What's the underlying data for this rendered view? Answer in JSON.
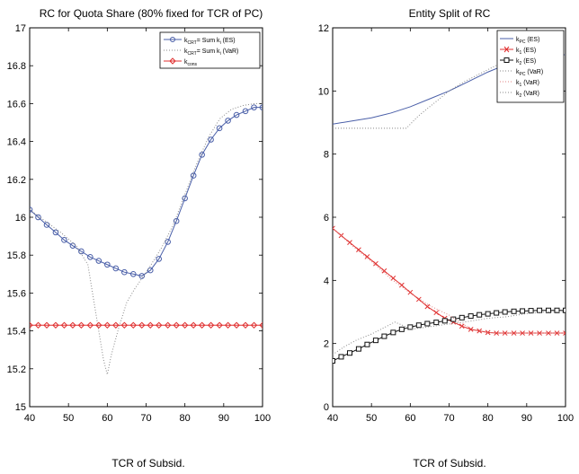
{
  "chart_data": [
    {
      "type": "line",
      "title": "RC for Quota Share (80% fixed for TCR of PC)",
      "xlabel": "TCR of Subsid.",
      "ylabel": "",
      "xlim": [
        40,
        100
      ],
      "ylim": [
        15,
        17
      ],
      "xticks": [
        40,
        50,
        60,
        70,
        80,
        90,
        100
      ],
      "yticks": [
        15,
        15.2,
        15.4,
        15.6,
        15.8,
        16,
        16.2,
        16.4,
        16.6,
        16.8,
        17
      ],
      "grid": false,
      "legend_position": "top-right",
      "series": [
        {
          "name": "k_CRT = Sum k_i (ES)",
          "color": "#4a5fa8",
          "style": "solid-circle",
          "x": [
            40,
            42.2,
            44.4,
            46.7,
            48.9,
            51.1,
            53.3,
            55.6,
            57.8,
            60,
            62.2,
            64.4,
            66.7,
            68.9,
            71.1,
            73.3,
            75.6,
            77.8,
            80,
            82.2,
            84.4,
            86.7,
            88.9,
            91.1,
            93.3,
            95.6,
            97.8,
            100
          ],
          "values": [
            16.04,
            16.0,
            15.96,
            15.92,
            15.88,
            15.85,
            15.82,
            15.79,
            15.77,
            15.75,
            15.73,
            15.71,
            15.7,
            15.69,
            15.72,
            15.78,
            15.87,
            15.98,
            16.1,
            16.22,
            16.33,
            16.41,
            16.47,
            16.51,
            16.54,
            16.56,
            16.58,
            16.58
          ]
        },
        {
          "name": "k_CRT = Sum k_i (VaR)",
          "color": "#888888",
          "style": "dotted",
          "x": [
            40,
            44,
            48,
            52,
            55,
            57,
            59,
            60,
            61,
            63,
            65,
            67,
            69,
            71,
            74,
            77,
            80,
            83,
            86,
            89,
            92,
            95,
            98,
            100
          ],
          "values": [
            16.04,
            15.98,
            15.92,
            15.85,
            15.75,
            15.5,
            15.25,
            15.17,
            15.27,
            15.42,
            15.55,
            15.62,
            15.68,
            15.74,
            15.84,
            15.96,
            16.12,
            16.28,
            16.42,
            16.52,
            16.57,
            16.59,
            16.6,
            16.6
          ]
        },
        {
          "name": "k_cons",
          "color": "#e03030",
          "style": "solid-diamond",
          "x": [
            40,
            42.2,
            44.4,
            46.7,
            48.9,
            51.1,
            53.3,
            55.6,
            57.8,
            60,
            62.2,
            64.4,
            66.7,
            68.9,
            71.1,
            73.3,
            75.6,
            77.8,
            80,
            82.2,
            84.4,
            86.7,
            88.9,
            91.1,
            93.3,
            95.6,
            97.8,
            100
          ],
          "values": [
            15.43,
            15.43,
            15.43,
            15.43,
            15.43,
            15.43,
            15.43,
            15.43,
            15.43,
            15.43,
            15.43,
            15.43,
            15.43,
            15.43,
            15.43,
            15.43,
            15.43,
            15.43,
            15.43,
            15.43,
            15.43,
            15.43,
            15.43,
            15.43,
            15.43,
            15.43,
            15.43,
            15.43
          ]
        }
      ]
    },
    {
      "type": "line",
      "title": "Entity Split of RC",
      "xlabel": "TCR of Subsid.",
      "ylabel": "",
      "xlim": [
        40,
        100
      ],
      "ylim": [
        0,
        12
      ],
      "xticks": [
        40,
        50,
        60,
        70,
        80,
        90,
        100
      ],
      "yticks": [
        0,
        2,
        4,
        6,
        8,
        10,
        12
      ],
      "grid": false,
      "legend_position": "top-right",
      "series": [
        {
          "name": "k_PC (ES)",
          "color": "#4a5fa8",
          "style": "solid",
          "x": [
            40,
            45,
            50,
            55,
            60,
            65,
            70,
            75,
            80,
            85,
            90,
            95,
            100
          ],
          "values": [
            8.95,
            9.05,
            9.15,
            9.3,
            9.5,
            9.75,
            10.0,
            10.3,
            10.6,
            10.85,
            11.0,
            11.1,
            11.15
          ]
        },
        {
          "name": "k_1 (ES)",
          "color": "#e03030",
          "style": "solid-x",
          "x": [
            40,
            42.2,
            44.4,
            46.7,
            48.9,
            51.1,
            53.3,
            55.6,
            57.8,
            60,
            62.2,
            64.4,
            66.7,
            68.9,
            71.1,
            73.3,
            75.6,
            77.8,
            80,
            82.2,
            84.4,
            86.7,
            88.9,
            91.1,
            93.3,
            95.6,
            97.8,
            100
          ],
          "values": [
            5.65,
            5.42,
            5.2,
            4.97,
            4.75,
            4.53,
            4.3,
            4.07,
            3.85,
            3.62,
            3.4,
            3.17,
            2.98,
            2.8,
            2.68,
            2.55,
            2.45,
            2.4,
            2.35,
            2.33,
            2.33,
            2.33,
            2.33,
            2.33,
            2.33,
            2.33,
            2.33,
            2.33
          ]
        },
        {
          "name": "k_2 (ES)",
          "color": "#111111",
          "style": "solid-square",
          "x": [
            40,
            42.2,
            44.4,
            46.7,
            48.9,
            51.1,
            53.3,
            55.6,
            57.8,
            60,
            62.2,
            64.4,
            66.7,
            68.9,
            71.1,
            73.3,
            75.6,
            77.8,
            80,
            82.2,
            84.4,
            86.7,
            88.9,
            91.1,
            93.3,
            95.6,
            97.8,
            100
          ],
          "values": [
            1.45,
            1.58,
            1.7,
            1.83,
            1.97,
            2.1,
            2.23,
            2.35,
            2.45,
            2.52,
            2.58,
            2.63,
            2.67,
            2.72,
            2.77,
            2.82,
            2.87,
            2.91,
            2.94,
            2.97,
            3.0,
            3.02,
            3.03,
            3.04,
            3.05,
            3.05,
            3.05,
            3.05
          ]
        },
        {
          "name": "k_PC (VaR)",
          "color": "#888888",
          "style": "dotted",
          "x": [
            40,
            45,
            50,
            55,
            59,
            62,
            66,
            70,
            74,
            78,
            82,
            86,
            90,
            95,
            100
          ],
          "values": [
            8.82,
            8.82,
            8.82,
            8.82,
            8.82,
            9.2,
            9.6,
            10.0,
            10.3,
            10.55,
            10.8,
            10.95,
            11.05,
            11.1,
            11.15
          ]
        },
        {
          "name": "k_1 (VaR)",
          "color": "#e08080",
          "style": "dotted",
          "x": [
            40,
            45,
            50,
            55,
            60,
            65,
            70,
            73,
            76,
            80,
            85,
            90,
            95,
            100
          ],
          "values": [
            5.65,
            5.1,
            4.6,
            4.05,
            3.6,
            3.2,
            2.9,
            2.65,
            2.45,
            2.35,
            2.33,
            2.33,
            2.33,
            2.33
          ]
        },
        {
          "name": "k_2 (VaR)",
          "color": "#888888",
          "style": "dotted",
          "x": [
            40,
            43,
            46,
            50,
            54,
            56,
            58,
            60,
            63,
            66,
            70,
            75,
            80,
            85,
            90,
            95,
            100
          ],
          "values": [
            1.65,
            1.9,
            2.1,
            2.3,
            2.55,
            2.68,
            2.58,
            2.45,
            2.5,
            2.55,
            2.62,
            2.7,
            2.8,
            2.85,
            2.95,
            3.0,
            3.0
          ]
        }
      ]
    }
  ]
}
